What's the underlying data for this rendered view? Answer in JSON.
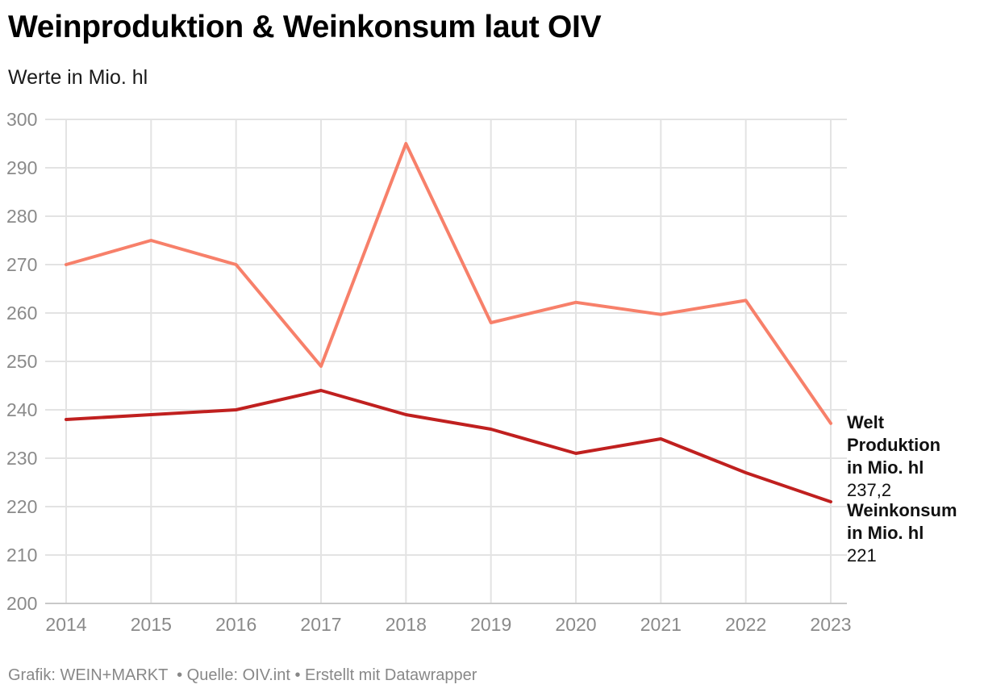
{
  "header": {
    "title": "Weinproduktion & Weinkonsum laut OIV",
    "subtitle": "Werte in Mio. hl"
  },
  "footer": {
    "text": "Grafik: WEIN+MARKT  • Quelle: OIV.int • Erstellt mit Datawrapper"
  },
  "chart_data": {
    "type": "line",
    "title": "Weinproduktion & Weinkonsum laut OIV",
    "subtitle": "Werte in Mio. hl",
    "x": [
      "2014",
      "2015",
      "2016",
      "2017",
      "2018",
      "2019",
      "2020",
      "2021",
      "2022",
      "2023"
    ],
    "ylim": [
      200,
      300
    ],
    "yticks": [
      200,
      210,
      220,
      230,
      240,
      250,
      260,
      270,
      280,
      290,
      300
    ],
    "grid": true,
    "legend": "inline labels at line ends (right)",
    "series": [
      {
        "name": "Welt Produktion in Mio. hl",
        "label_lines": [
          "Welt",
          "Produktion",
          "in Mio. hl"
        ],
        "end_label": "237,2",
        "color": "#f7806a",
        "values": [
          270,
          275,
          270,
          249,
          295,
          258,
          262.2,
          259.7,
          262.6,
          237.2
        ]
      },
      {
        "name": "Weinkonsum in Mio. hl",
        "label_lines": [
          "Weinkonsum",
          "in Mio. hl"
        ],
        "end_label": "221",
        "color": "#c0201f",
        "values": [
          238,
          239,
          240,
          244,
          239,
          236,
          231,
          234,
          227,
          221
        ]
      }
    ]
  }
}
